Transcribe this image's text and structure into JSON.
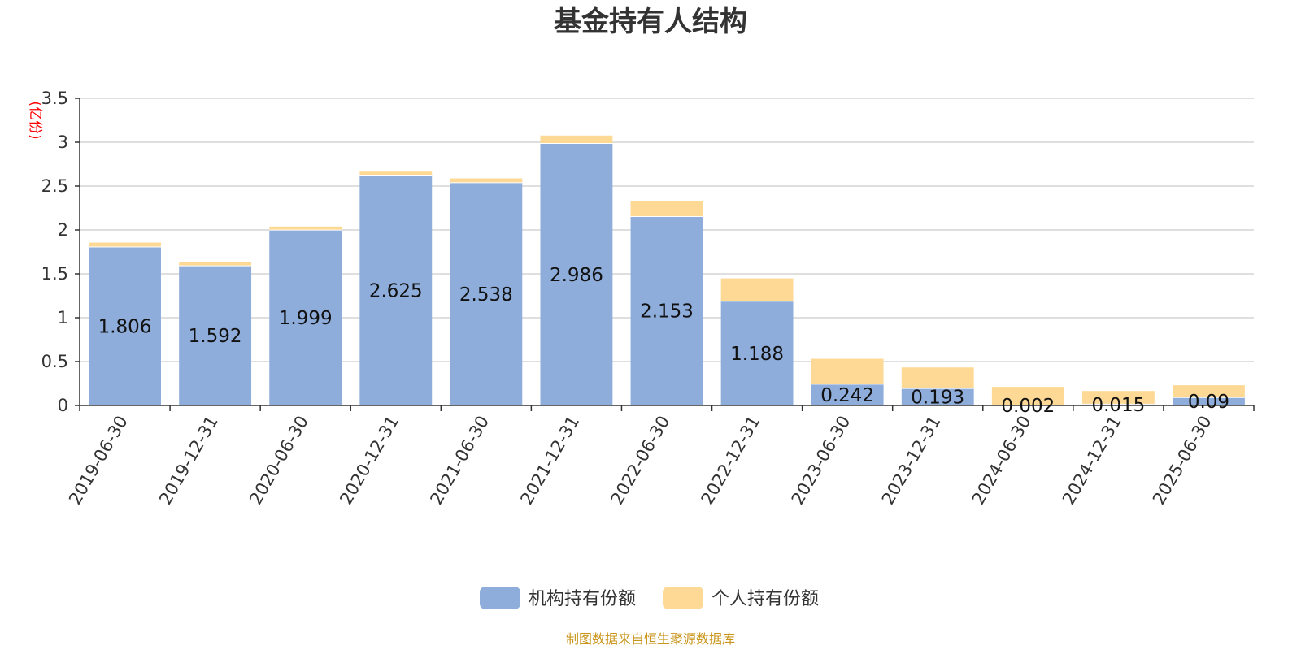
{
  "chart_data": {
    "type": "bar",
    "stacked": true,
    "title": "基金持有人结构",
    "unit_label": "(亿份)",
    "categories": [
      "2019-06-30",
      "2019-12-31",
      "2020-06-30",
      "2020-12-31",
      "2021-06-30",
      "2021-12-31",
      "2022-06-30",
      "2022-12-31",
      "2023-06-30",
      "2023-12-31",
      "2024-06-30",
      "2024-12-31",
      "2025-06-30"
    ],
    "series": [
      {
        "name": "机构持有份额",
        "color": "#8eaddb",
        "values": [
          1.806,
          1.592,
          1.999,
          2.625,
          2.538,
          2.986,
          2.153,
          1.188,
          0.242,
          0.193,
          0.002,
          0.015,
          0.09
        ],
        "labels": [
          "1.806",
          "1.592",
          "1.999",
          "2.625",
          "2.538",
          "2.986",
          "2.153",
          "1.188",
          "0.242",
          "0.193",
          "0.002",
          "0.015",
          "0.09"
        ]
      },
      {
        "name": "个人持有份额",
        "color": "#fdd995",
        "values": [
          0.05,
          0.04,
          0.04,
          0.04,
          0.05,
          0.09,
          0.18,
          0.26,
          0.29,
          0.24,
          0.21,
          0.15,
          0.14
        ]
      }
    ],
    "yticks": [
      "0",
      "0.5",
      "1",
      "1.5",
      "2",
      "2.5",
      "3",
      "3.5"
    ],
    "ylim": [
      0,
      3.5
    ],
    "grid": true,
    "legend_position": "bottom-center",
    "source_note": "制图数据来自恒生聚源数据库"
  }
}
